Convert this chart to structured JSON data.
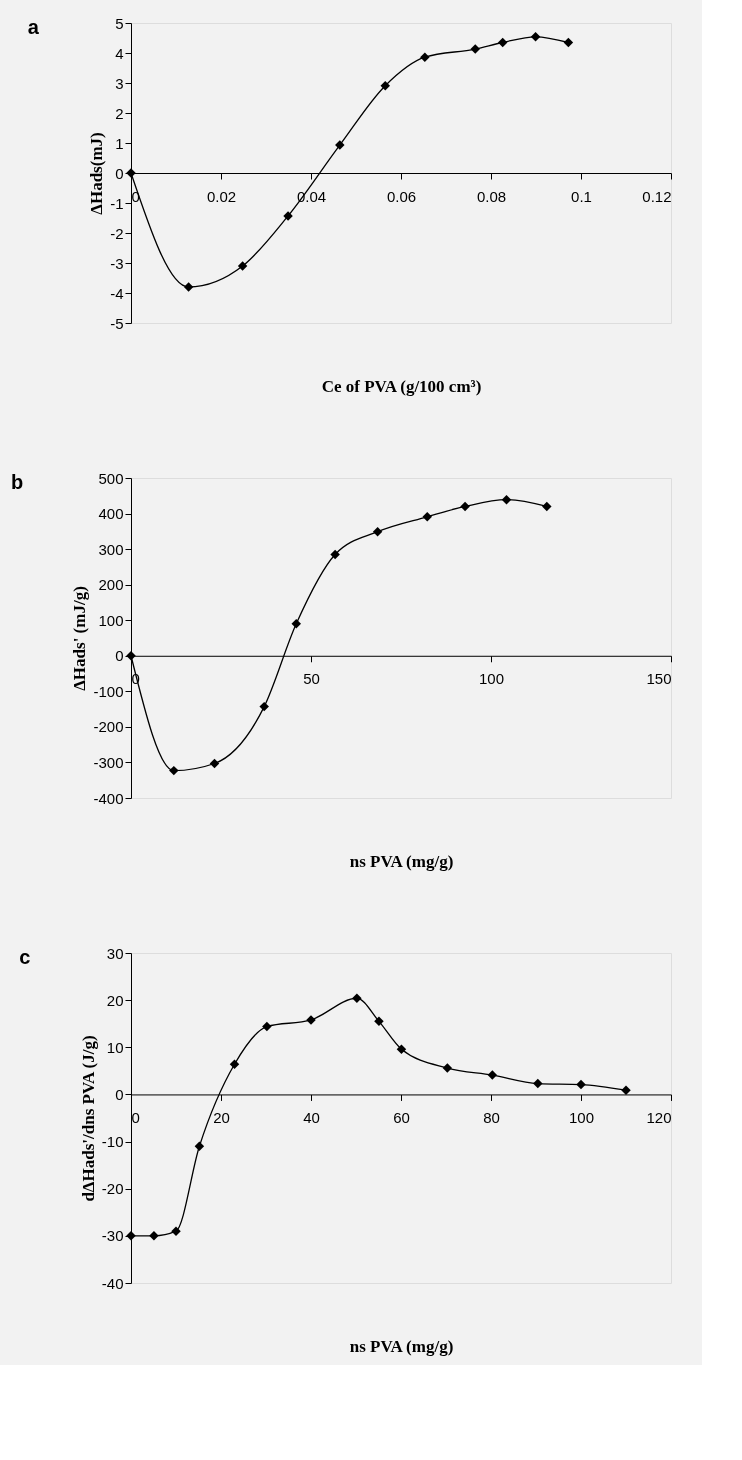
{
  "chart_data": [
    {
      "type": "line",
      "title": "a",
      "xlabel": "Ce of PVA (g/100 cm³)",
      "ylabel": "ΔHads(mJ)",
      "color": "#000000",
      "marker": "diamond",
      "grid": false,
      "x": [
        0,
        0.0128,
        0.0248,
        0.0349,
        0.0464,
        0.0565,
        0.0653,
        0.0765,
        0.0826,
        0.0899,
        0.0972
      ],
      "values": [
        0,
        -3.8,
        -3.1,
        -1.43,
        0.93,
        2.91,
        3.86,
        4.13,
        4.35,
        4.54,
        4.35
      ],
      "xlim": [
        0,
        0.12
      ],
      "xticks": [
        0,
        0.02,
        0.04,
        0.06,
        0.08,
        0.1,
        0.12
      ],
      "ylim": [
        -5,
        5
      ],
      "yticks": [
        -5,
        -4,
        -3,
        -2,
        -1,
        0,
        1,
        2,
        3,
        4,
        5
      ]
    },
    {
      "type": "line",
      "title": "b",
      "xlabel": "ns PVA (mg/g)",
      "ylabel": "ΔHads' (mJ/g)",
      "color": "#000000",
      "marker": "diamond",
      "grid": false,
      "x": [
        0,
        11.9,
        23.2,
        37.0,
        45.9,
        56.7,
        68.5,
        82.3,
        92.8,
        104.3,
        115.5
      ],
      "values": [
        0,
        -323,
        -303,
        -143,
        90,
        285,
        349,
        391,
        420,
        439,
        420
      ],
      "xlim": [
        0,
        150
      ],
      "xticks": [
        0,
        50,
        100,
        150
      ],
      "ylim": [
        -400,
        500
      ],
      "yticks": [
        -400,
        -300,
        -200,
        -100,
        0,
        100,
        200,
        300,
        400,
        500
      ]
    },
    {
      "type": "line",
      "title": "c",
      "xlabel": "ns PVA (mg/g)",
      "ylabel": "dΔHads'/dns PVA (J/g)",
      "color": "#000000",
      "marker": "diamond",
      "grid": false,
      "x": [
        0,
        5.1,
        10,
        15.2,
        23,
        30.2,
        40,
        50.2,
        55.1,
        60.1,
        70.3,
        80.3,
        90.4,
        100,
        110
      ],
      "values": [
        -30,
        -30,
        -29,
        -11,
        6.4,
        14.4,
        15.8,
        20.4,
        15.5,
        9.6,
        5.6,
        4.1,
        2.3,
        2.1,
        0.9
      ],
      "xlim": [
        0,
        120
      ],
      "xticks": [
        0,
        20,
        40,
        60,
        80,
        100,
        120
      ],
      "ylim": [
        -40,
        30
      ],
      "yticks": [
        -40,
        -30,
        -20,
        -10,
        0,
        10,
        20,
        30
      ]
    }
  ]
}
